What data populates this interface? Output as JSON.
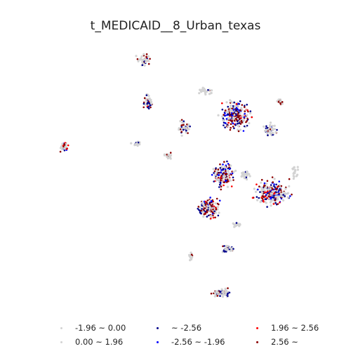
{
  "map": {
    "title": "t_MEDICAID__8_Urban_texas",
    "colors": {
      "lt_neg196": "#d3d3d3",
      "pos_0_196": "#d3d3d3",
      "lt_neg256": "#00008b",
      "neg256_neg196": "#0000ff",
      "pos196_256": "#ff0000",
      "pos256": "#8b0000"
    }
  },
  "legend": {
    "items": [
      {
        "label": "-1.96 ~ 0.00",
        "color": "#d3d3d3"
      },
      {
        "label": "~ -2.56",
        "color": "#00008b"
      },
      {
        "label": "1.96 ~ 2.56",
        "color": "#ff0000"
      },
      {
        "label": "0.00 ~ 1.96",
        "color": "#d3d3d3"
      },
      {
        "label": "-2.56 ~ -1.96",
        "color": "#0000ff"
      },
      {
        "label": "2.56 ~",
        "color": "#8b0000"
      }
    ]
  }
}
